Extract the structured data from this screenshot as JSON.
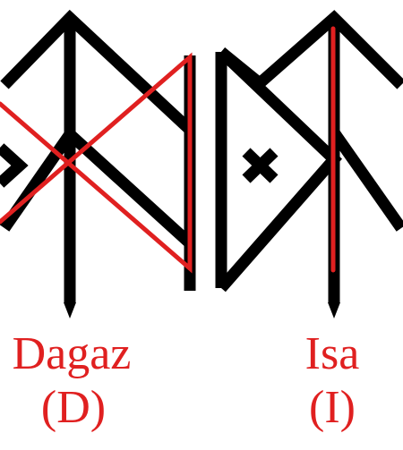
{
  "colors": {
    "background": "#ffffff",
    "bindrune": "#000000",
    "highlight": "#e02020",
    "label": "#e02020"
  },
  "panels": [
    {
      "highlight_shape": "dagaz-cross",
      "name": "Dagaz",
      "letter": "(D)"
    },
    {
      "highlight_shape": "isa-vertical",
      "name": "Isa",
      "letter": "(I)"
    }
  ]
}
